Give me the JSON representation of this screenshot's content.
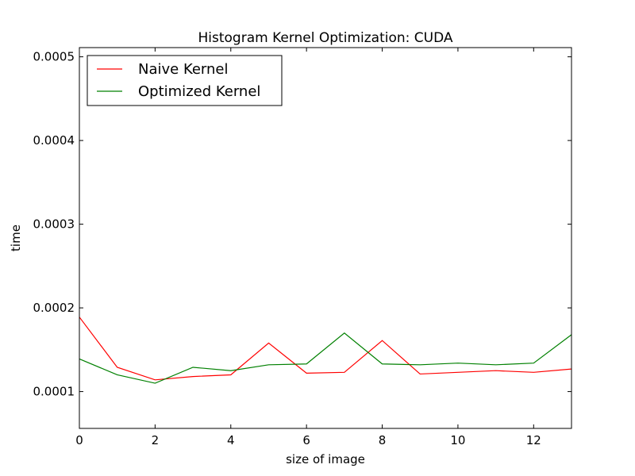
{
  "chart_data": {
    "type": "line",
    "title": "Histogram Kernel Optimization: CUDA",
    "xlabel": "size of image",
    "ylabel": "time",
    "xlim": [
      0,
      13
    ],
    "ylim": [
      5.6e-05,
      0.000511
    ],
    "xticks": [
      0,
      2,
      4,
      6,
      8,
      10,
      12
    ],
    "xtick_labels": [
      "0",
      "2",
      "4",
      "6",
      "8",
      "10",
      "12"
    ],
    "yticks": [
      0.0001,
      0.0002,
      0.0003,
      0.0004,
      0.0005
    ],
    "ytick_labels": [
      "0.0001",
      "0.0002",
      "0.0003",
      "0.0004",
      "0.0005"
    ],
    "grid": false,
    "legend_position": "top-left",
    "x": [
      0,
      1,
      2,
      3,
      4,
      5,
      6,
      7,
      8,
      9,
      10,
      11,
      12,
      13
    ],
    "series": [
      {
        "name": "Naive Kernel",
        "color": "#ff0000",
        "values": [
          0.000189,
          0.000129,
          0.000114,
          0.000118,
          0.00012,
          0.000158,
          0.000122,
          0.000123,
          0.000161,
          0.000121,
          0.000123,
          0.000125,
          0.000123,
          0.000127
        ]
      },
      {
        "name": "Optimized Kernel",
        "color": "#008000",
        "values": [
          0.000139,
          0.00012,
          0.00011,
          0.000129,
          0.000125,
          0.000132,
          0.000133,
          0.00017,
          0.000133,
          0.000132,
          0.000134,
          0.000132,
          0.000134,
          0.000168
        ]
      }
    ]
  }
}
